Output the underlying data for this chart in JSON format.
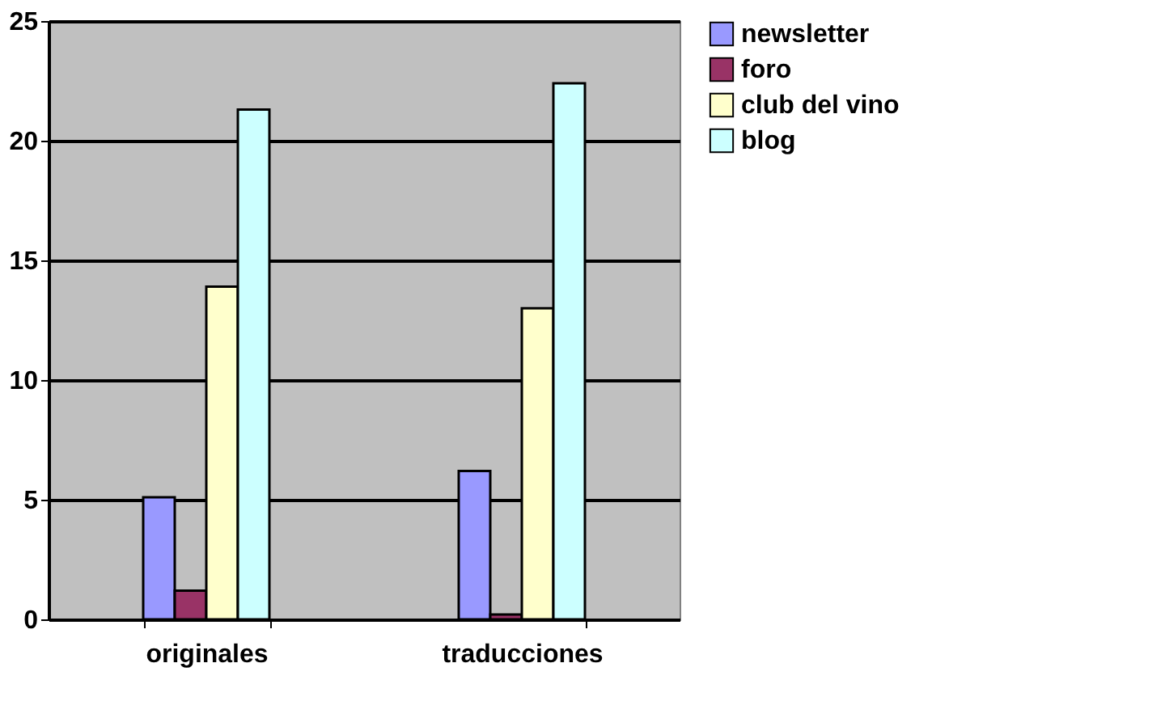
{
  "chart_data": {
    "type": "bar",
    "categories": [
      "originales",
      "traducciones"
    ],
    "series": [
      {
        "name": "newsletter",
        "color": "#9999ff",
        "values": [
          5.1,
          6.2
        ]
      },
      {
        "name": "foro",
        "color": "#993366",
        "values": [
          1.2,
          0.2
        ]
      },
      {
        "name": "club del vino",
        "color": "#ffffcc",
        "values": [
          13.9,
          13.0
        ]
      },
      {
        "name": "blog",
        "color": "#ccffff",
        "values": [
          21.3,
          22.4
        ]
      }
    ],
    "ylim": [
      0,
      25
    ],
    "yticks": [
      0,
      5,
      10,
      15,
      20,
      25
    ],
    "grid": "y",
    "legend": "right"
  }
}
